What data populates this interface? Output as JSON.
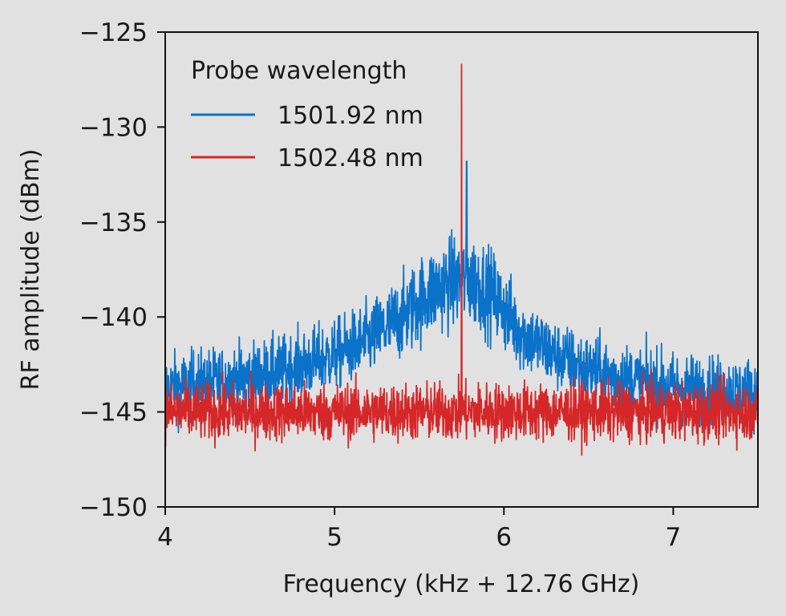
{
  "chart_data": {
    "type": "line",
    "xlabel": "Frequency (kHz + 12.76 GHz)",
    "ylabel": "RF amplitude (dBm)",
    "xlim": [
      4,
      7.5
    ],
    "ylim": [
      -150,
      -125
    ],
    "xticks": [
      4,
      5,
      6,
      7
    ],
    "yticks": [
      -125,
      -130,
      -135,
      -140,
      -145,
      -150
    ],
    "xtick_labels": [
      "4",
      "5",
      "6",
      "7"
    ],
    "ytick_labels": [
      "−125",
      "−130",
      "−135",
      "−140",
      "−145",
      "−150"
    ],
    "grid": false,
    "legend": {
      "title": "Probe wavelength",
      "placement": "top-left"
    },
    "series": [
      {
        "name": "1501.92 nm",
        "color": "#0b72c9",
        "description_type": "noisy resonance peak",
        "x": [
          4.0,
          4.25,
          4.5,
          4.75,
          5.0,
          5.2,
          5.4,
          5.55,
          5.65,
          5.75,
          5.78,
          5.85,
          5.95,
          6.1,
          6.3,
          6.5,
          6.75,
          7.0,
          7.25,
          7.5
        ],
        "y": [
          -143.8,
          -143.5,
          -143.2,
          -142.7,
          -142.0,
          -141.2,
          -140.0,
          -138.8,
          -138.3,
          -138.0,
          -131.8,
          -138.2,
          -139.0,
          -140.8,
          -142.0,
          -142.8,
          -143.3,
          -143.7,
          -143.9,
          -144.0
        ]
      },
      {
        "name": "1502.48 nm",
        "color": "#d62728",
        "description_type": "noise floor with single tone",
        "x": [
          4.0,
          4.5,
          5.0,
          5.5,
          5.74,
          5.75,
          5.76,
          6.0,
          6.5,
          7.0,
          7.5
        ],
        "y": [
          -145.0,
          -145.0,
          -145.0,
          -145.0,
          -145.0,
          -126.7,
          -145.0,
          -145.0,
          -145.0,
          -145.0,
          -145.0
        ]
      }
    ]
  }
}
